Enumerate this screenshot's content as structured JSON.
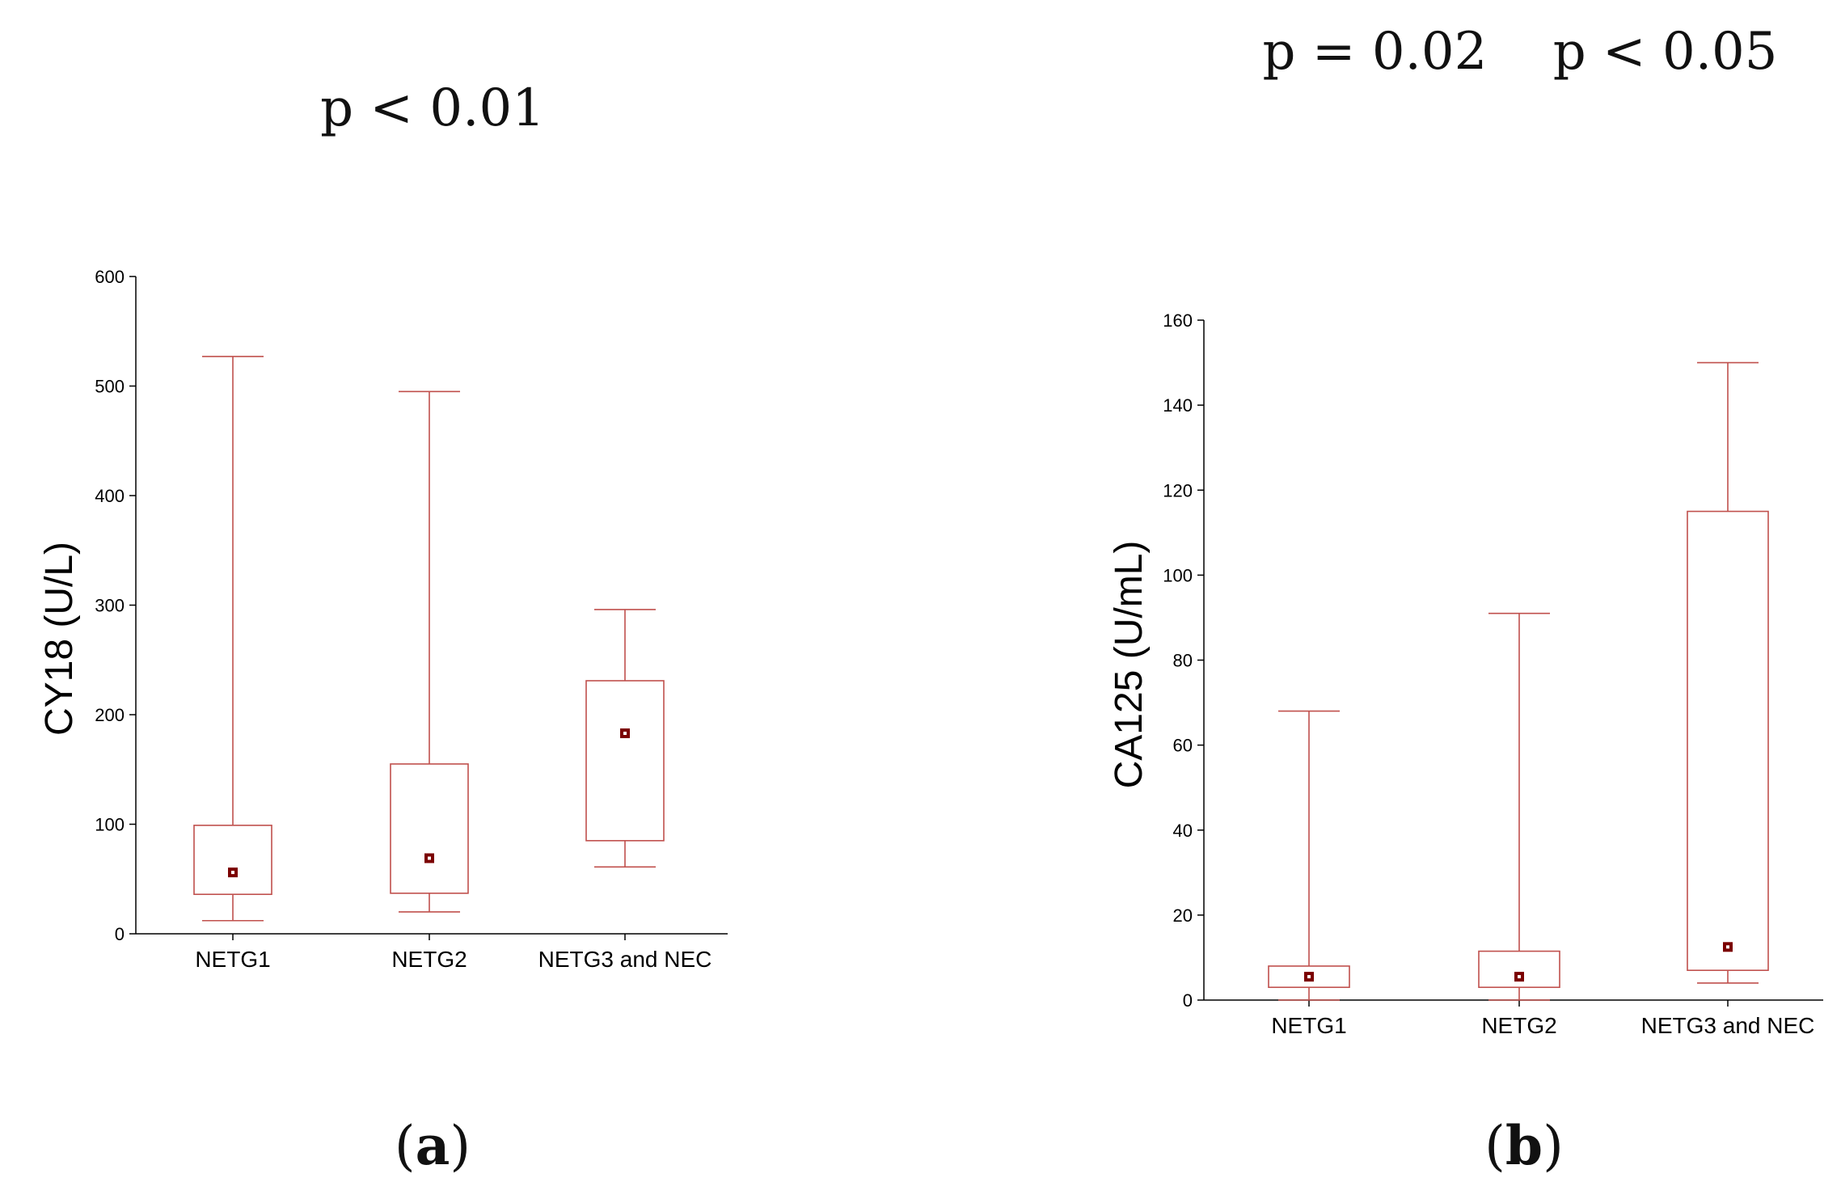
{
  "chart_data": [
    {
      "panel": "(a)",
      "type": "box",
      "pvalue": "p < 0.01",
      "ylabel": "CY18 (U/L)",
      "ylim": [
        0,
        600
      ],
      "yticks": [
        0,
        100,
        200,
        300,
        400,
        500,
        600
      ],
      "categories": [
        "NETG1",
        "NETG2",
        "NETG3 and NEC"
      ],
      "boxes": [
        {
          "min": 12,
          "q1": 36,
          "median": 56,
          "q3": 99,
          "max": 527
        },
        {
          "min": 20,
          "q1": 37,
          "median": 69,
          "q3": 155,
          "max": 495
        },
        {
          "min": 61,
          "q1": 85,
          "median": 183,
          "q3": 231,
          "max": 296
        }
      ]
    },
    {
      "panel": "(b)",
      "type": "box",
      "pvalue": "p = 0.02    p < 0.05",
      "ylabel": "CA125 (U/mL)",
      "ylim": [
        0,
        160
      ],
      "yticks": [
        0,
        20,
        40,
        60,
        80,
        100,
        120,
        140,
        160
      ],
      "categories": [
        "NETG1",
        "NETG2",
        "NETG3 and NEC"
      ],
      "boxes": [
        {
          "min": 0,
          "q1": 3,
          "median": 5.5,
          "q3": 8,
          "max": 68
        },
        {
          "min": 0,
          "q1": 3,
          "median": 5.5,
          "q3": 11.5,
          "max": 91
        },
        {
          "min": 4,
          "q1": 7,
          "median": 12.5,
          "q3": 115,
          "max": 150
        }
      ]
    }
  ],
  "colors": {
    "box": "#c0504d",
    "median_marker": "#7b0000",
    "axis": "#000000"
  }
}
